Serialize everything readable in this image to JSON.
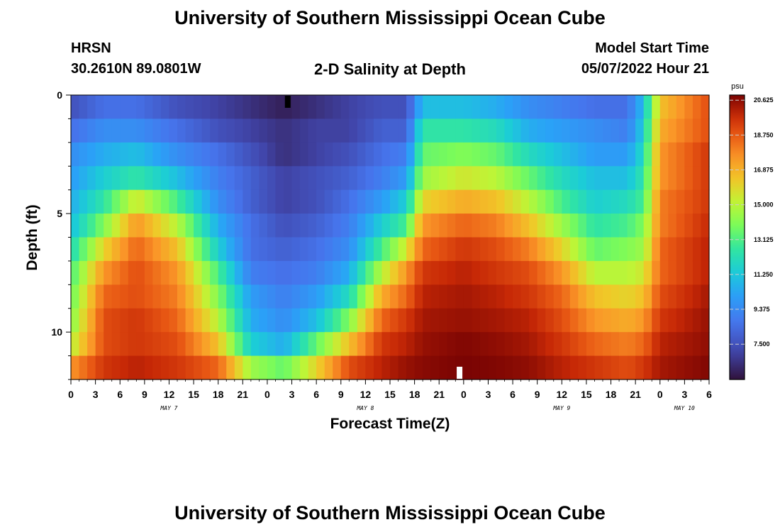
{
  "page": {
    "title_top": "University of Southern Mississippi Ocean Cube",
    "title_bottom": "University of Southern Mississippi Ocean Cube",
    "station": "HRSN",
    "coords": "30.2610N  89.0801W",
    "chart_title": "2-D Salinity at Depth",
    "model_start_label": "Model Start Time",
    "model_start_value": "05/07/2022 Hour 21"
  },
  "chart_data": {
    "type": "heatmap",
    "title": "2-D Salinity at Depth",
    "xlabel": "Forecast Time(Z)",
    "ylabel": "Depth (ft)",
    "x_tick_labels": [
      "0",
      "3",
      "6",
      "9",
      "12",
      "15",
      "18",
      "21",
      "0",
      "3",
      "6",
      "9",
      "12",
      "15",
      "18",
      "21",
      "0",
      "3",
      "6",
      "9",
      "12",
      "15",
      "18",
      "21",
      "0",
      "3",
      "6"
    ],
    "day_labels": [
      {
        "label": "MAY 7",
        "at_hour": 12
      },
      {
        "label": "MAY 8",
        "at_hour": 36
      },
      {
        "label": "MAY 9",
        "at_hour": 60
      },
      {
        "label": "MAY 10",
        "at_hour": 75
      }
    ],
    "xlim": [
      0,
      78
    ],
    "ylim": [
      0,
      12
    ],
    "y_ticks": [
      0,
      5,
      10
    ],
    "colorbar": {
      "unit": "psu",
      "range": [
        5.6,
        20.9
      ],
      "ticks": [
        "20.625",
        "18.750",
        "16.875",
        "15.000",
        "13.125",
        "11.250",
        "9.375",
        "7.500"
      ],
      "tick_values": [
        20.625,
        18.75,
        16.875,
        15.0,
        13.125,
        11.25,
        9.375,
        7.5
      ]
    },
    "markers": [
      {
        "hour": 26.5,
        "position": "top",
        "color": "#000000"
      },
      {
        "hour": 47.5,
        "position": "bottom",
        "color": "#ffffff"
      }
    ],
    "depth_rows": [
      0.5,
      1.5,
      2.5,
      3.5,
      4.5,
      5.5,
      6.5,
      7.5,
      8.5,
      9.5,
      10.5,
      11.5
    ],
    "profile_hours": [
      0,
      4,
      8,
      13,
      18,
      22,
      26,
      30,
      34,
      38,
      41,
      43,
      48,
      52,
      56,
      60,
      64,
      68,
      70,
      72,
      78
    ],
    "salinity_profiles": [
      [
        7.5,
        8.5,
        9.5,
        10.0,
        10.5,
        11.0,
        12.0,
        13.0,
        13.5,
        14.0,
        15.0,
        17.5
      ],
      [
        8.5,
        9.5,
        10.5,
        11.5,
        12.5,
        14.0,
        16.0,
        17.5,
        18.5,
        19.0,
        19.0,
        19.5
      ],
      [
        8.5,
        9.5,
        11.0,
        12.5,
        15.5,
        17.5,
        18.5,
        19.0,
        19.0,
        19.5,
        19.5,
        20.0
      ],
      [
        7.5,
        8.5,
        9.5,
        11.0,
        13.0,
        15.0,
        16.5,
        17.5,
        18.0,
        18.5,
        19.0,
        19.5
      ],
      [
        7.0,
        7.5,
        8.5,
        9.0,
        9.5,
        10.5,
        11.5,
        13.0,
        14.0,
        15.0,
        16.5,
        18.5
      ],
      [
        6.5,
        7.0,
        7.5,
        8.0,
        8.0,
        8.5,
        8.5,
        9.0,
        10.0,
        10.5,
        11.5,
        14.5
      ],
      [
        6.0,
        6.5,
        6.5,
        7.0,
        7.0,
        7.5,
        8.0,
        8.5,
        9.0,
        9.5,
        10.5,
        13.5
      ],
      [
        6.5,
        7.0,
        7.0,
        7.5,
        7.5,
        8.0,
        8.5,
        9.0,
        10.0,
        11.0,
        13.5,
        16.0
      ],
      [
        7.0,
        7.0,
        7.5,
        8.0,
        8.5,
        9.0,
        9.5,
        10.5,
        12.0,
        14.0,
        16.5,
        19.0
      ],
      [
        7.5,
        8.0,
        8.5,
        9.0,
        10.0,
        11.5,
        13.0,
        15.0,
        17.0,
        18.5,
        19.5,
        20.0
      ],
      [
        7.5,
        8.0,
        9.0,
        10.0,
        11.5,
        13.0,
        15.5,
        17.5,
        18.5,
        19.5,
        20.0,
        20.5
      ],
      [
        11.0,
        12.5,
        13.5,
        14.5,
        16.0,
        17.5,
        18.5,
        19.5,
        20.0,
        20.3,
        20.5,
        20.7
      ],
      [
        11.0,
        12.5,
        14.0,
        15.5,
        17.0,
        18.5,
        19.5,
        20.0,
        20.3,
        20.5,
        20.8,
        20.9
      ],
      [
        10.5,
        12.0,
        13.5,
        15.0,
        16.5,
        18.0,
        19.0,
        19.5,
        20.0,
        20.3,
        20.6,
        20.8
      ],
      [
        9.5,
        10.5,
        12.0,
        13.5,
        15.0,
        16.5,
        18.0,
        19.0,
        19.5,
        20.0,
        20.3,
        20.6
      ],
      [
        9.0,
        10.0,
        11.0,
        12.0,
        13.0,
        14.5,
        16.0,
        17.5,
        18.5,
        19.0,
        19.5,
        20.0
      ],
      [
        8.5,
        9.5,
        10.0,
        11.0,
        11.5,
        12.5,
        13.5,
        15.0,
        16.5,
        17.5,
        18.5,
        19.5
      ],
      [
        8.5,
        9.0,
        10.0,
        11.0,
        12.0,
        13.0,
        14.0,
        15.0,
        16.0,
        17.0,
        18.0,
        19.0
      ],
      [
        11.0,
        11.5,
        12.0,
        12.5,
        13.0,
        14.0,
        14.5,
        15.5,
        16.5,
        17.5,
        18.5,
        19.5
      ],
      [
        16.5,
        17.0,
        17.5,
        17.5,
        18.0,
        18.0,
        18.5,
        18.5,
        19.0,
        19.5,
        20.0,
        20.3
      ],
      [
        19.0,
        19.0,
        19.5,
        19.5,
        19.5,
        19.8,
        20.0,
        20.0,
        20.3,
        20.5,
        20.6,
        20.8
      ]
    ]
  }
}
